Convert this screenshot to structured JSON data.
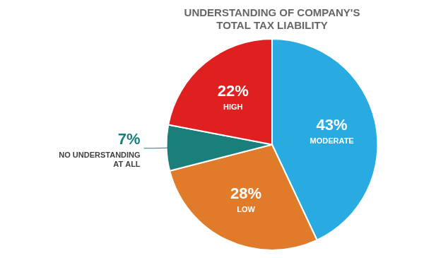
{
  "chart_data": {
    "type": "pie",
    "title": "UNDERSTANDING OF COMPANY'S\nTOTAL TAX LIABILITY",
    "categories": [
      "MODERATE",
      "LOW",
      "NO UNDERSTANDING\nAT ALL",
      "HIGH"
    ],
    "values": [
      43,
      28,
      7,
      22
    ],
    "value_labels": [
      "43%",
      "28%",
      "7%",
      "22%"
    ],
    "colors": [
      "#29abe2",
      "#e07b2a",
      "#1a7f7a",
      "#e02020"
    ],
    "data_labels": true
  }
}
